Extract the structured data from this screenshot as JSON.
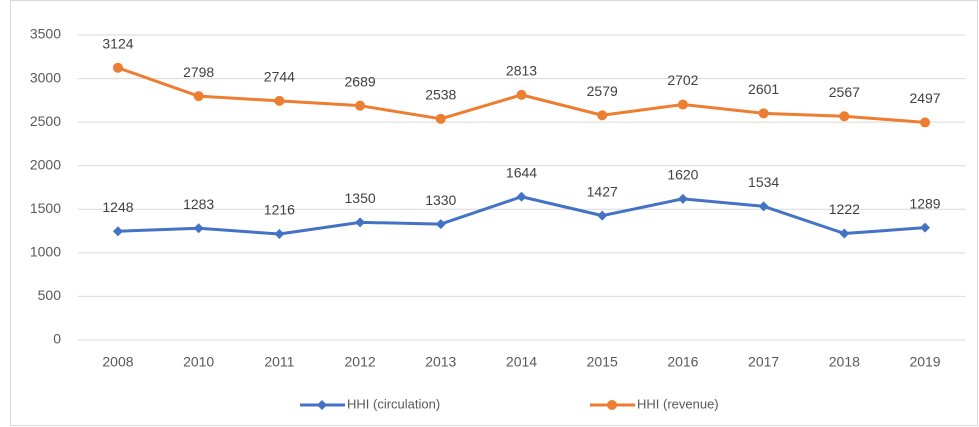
{
  "chart_data": {
    "type": "line",
    "categories": [
      "2008",
      "2010",
      "2011",
      "2012",
      "2013",
      "2014",
      "2015",
      "2016",
      "2017",
      "2018",
      "2019"
    ],
    "series": [
      {
        "name": "HHI (circulation)",
        "color": "#4472c4",
        "marker": "diamond",
        "values": [
          1248,
          1283,
          1216,
          1350,
          1330,
          1644,
          1427,
          1620,
          1534,
          1222,
          1289
        ]
      },
      {
        "name": "HHI (revenue)",
        "color": "#ed7d31",
        "marker": "circle",
        "values": [
          3124,
          2798,
          2744,
          2689,
          2538,
          2813,
          2579,
          2702,
          2601,
          2567,
          2497
        ]
      }
    ],
    "ylim": [
      0,
      3500
    ],
    "yticks": [
      0,
      500,
      1000,
      1500,
      2000,
      2500,
      3000,
      3500
    ],
    "grid": true,
    "legend": "bottom",
    "data_labels": true
  }
}
